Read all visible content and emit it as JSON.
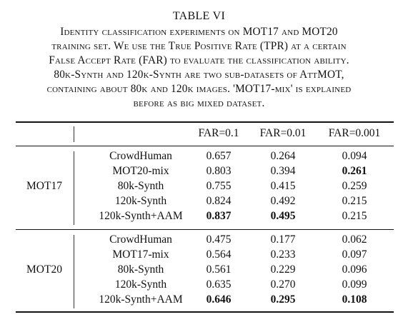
{
  "table_title": "TABLE VI",
  "caption_lines": [
    "Identity classification experiments on MOT17 and MOT20",
    "training set. We use the True Positive Rate (TPR) at a certain",
    "False Accept Rate (FAR) to evaluate the classification ability.",
    "80k-Synth and 120k-Synth are two sub-datasets of AttMOT,",
    "containing about 80k and 120k images. 'MOT17-mix' is explained",
    "before as big mixed dataset."
  ],
  "columns": [
    "FAR=0.1",
    "FAR=0.01",
    "FAR=0.001"
  ],
  "groups": [
    {
      "name": "MOT17",
      "rows": [
        {
          "method": "CrowdHuman",
          "values": [
            "0.657",
            "0.264",
            "0.094"
          ],
          "bold": [
            false,
            false,
            false
          ]
        },
        {
          "method": "MOT20-mix",
          "values": [
            "0.803",
            "0.394",
            "0.261"
          ],
          "bold": [
            false,
            false,
            true
          ]
        },
        {
          "method": "80k-Synth",
          "values": [
            "0.755",
            "0.415",
            "0.259"
          ],
          "bold": [
            false,
            false,
            false
          ]
        },
        {
          "method": "120k-Synth",
          "values": [
            "0.824",
            "0.492",
            "0.215"
          ],
          "bold": [
            false,
            false,
            false
          ]
        },
        {
          "method": "120k-Synth+AAM",
          "values": [
            "0.837",
            "0.495",
            "0.215"
          ],
          "bold": [
            true,
            true,
            false
          ]
        }
      ]
    },
    {
      "name": "MOT20",
      "rows": [
        {
          "method": "CrowdHuman",
          "values": [
            "0.475",
            "0.177",
            "0.062"
          ],
          "bold": [
            false,
            false,
            false
          ]
        },
        {
          "method": "MOT17-mix",
          "values": [
            "0.564",
            "0.233",
            "0.097"
          ],
          "bold": [
            false,
            false,
            false
          ]
        },
        {
          "method": "80k-Synth",
          "values": [
            "0.561",
            "0.229",
            "0.096"
          ],
          "bold": [
            false,
            false,
            false
          ]
        },
        {
          "method": "120k-Synth",
          "values": [
            "0.635",
            "0.270",
            "0.099"
          ],
          "bold": [
            false,
            false,
            false
          ]
        },
        {
          "method": "120k-Synth+AAM",
          "values": [
            "0.646",
            "0.295",
            "0.108"
          ],
          "bold": [
            true,
            true,
            true
          ]
        }
      ]
    }
  ]
}
